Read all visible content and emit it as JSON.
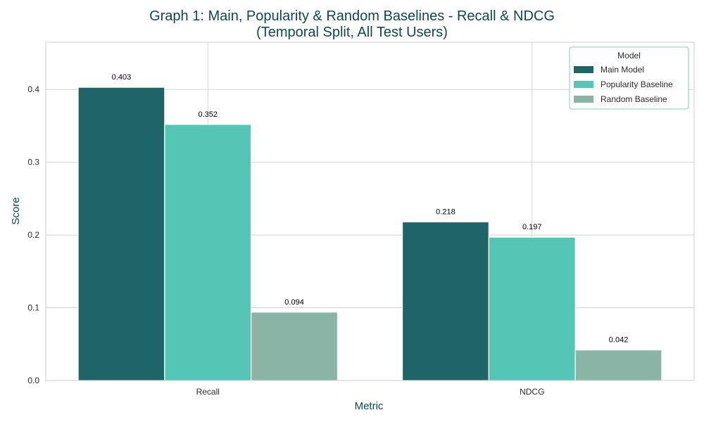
{
  "chart_data": {
    "type": "bar",
    "title": "Graph 1: Main, Popularity & Random Baselines - Recall & NDCG",
    "subtitle": "(Temporal Split, All Test Users)",
    "xlabel": "Metric",
    "ylabel": "Score",
    "categories": [
      "Recall",
      "NDCG"
    ],
    "series": [
      {
        "name": "Main Model",
        "values": [
          0.403,
          0.218
        ],
        "labels": [
          "0.403",
          "0.218"
        ],
        "color": "#1f6568"
      },
      {
        "name": "Popularity Baseline",
        "values": [
          0.352,
          0.197
        ],
        "labels": [
          "0.352",
          "0.197"
        ],
        "color": "#55c5b5"
      },
      {
        "name": "Random Baseline",
        "values": [
          0.094,
          0.042
        ],
        "labels": [
          "0.094",
          "0.042"
        ],
        "color": "#8ab5a6"
      }
    ],
    "ylim": [
      0,
      0.465
    ],
    "yticks": [
      0.0,
      0.1,
      0.2,
      0.3,
      0.4
    ],
    "ytick_labels": [
      "0.0",
      "0.1",
      "0.2",
      "0.3",
      "0.4"
    ],
    "grid": true,
    "legend": {
      "title": "Model",
      "position": "top-right"
    }
  }
}
